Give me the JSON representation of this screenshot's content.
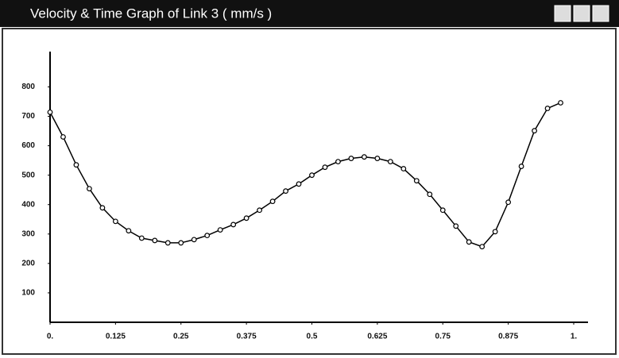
{
  "chart_data": {
    "type": "line",
    "title": "Velocity & Time Graph of Link 3 ( mm/s )",
    "x": [
      0,
      0.025,
      0.05,
      0.075,
      0.1,
      0.125,
      0.15,
      0.175,
      0.2,
      0.225,
      0.25,
      0.275,
      0.3,
      0.325,
      0.35,
      0.375,
      0.4,
      0.425,
      0.45,
      0.475,
      0.5,
      0.525,
      0.55,
      0.575,
      0.6,
      0.625,
      0.65,
      0.675,
      0.7,
      0.725,
      0.75,
      0.775,
      0.8,
      0.825,
      0.85,
      0.875,
      0.9,
      0.925,
      0.95,
      0.975
    ],
    "series": [
      {
        "color": "#000000",
        "values": [
          714,
          630,
          535,
          454,
          389,
          343,
          311,
          286,
          278,
          270,
          270,
          281,
          295,
          314,
          332,
          354,
          381,
          411,
          446,
          470,
          500,
          527,
          546,
          557,
          562,
          557,
          546,
          522,
          481,
          435,
          381,
          327,
          273,
          257,
          308,
          408,
          530,
          651,
          727,
          746
        ]
      }
    ],
    "xlim": [
      0,
      1
    ],
    "xticks": [
      {
        "value": 0,
        "label": "0."
      },
      0.125,
      0.25,
      0.375,
      0.5,
      0.625,
      0.75,
      0.875,
      {
        "value": 1,
        "label": "1."
      }
    ],
    "ylim": [
      0,
      920
    ],
    "yticks": [
      100,
      200,
      300,
      400,
      500,
      600,
      700,
      800
    ]
  }
}
